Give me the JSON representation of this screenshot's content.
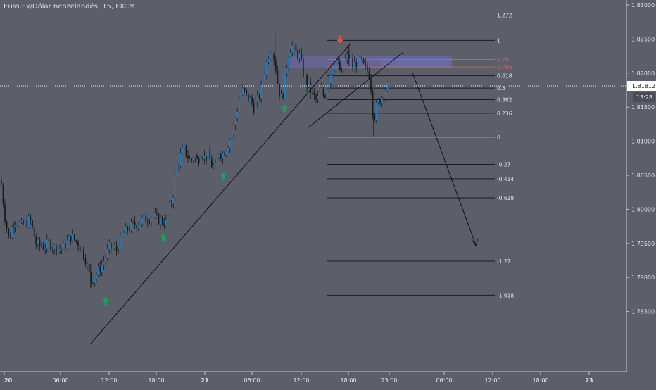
{
  "header": {
    "title": "Euro Fx/Dólar neozelandés, 15, FXCM"
  },
  "price_axis": {
    "ticks": [
      "1.83000",
      "1.82500",
      "1.82000",
      "1.81500",
      "1.81000",
      "1.80500",
      "1.80000",
      "1.79500",
      "1.79000",
      "1.78500"
    ],
    "current_price": "1.81812",
    "countdown": "13:28"
  },
  "time_axis": {
    "labels": [
      "20",
      "06:00",
      "12:00",
      "18:00",
      "21",
      "06:00",
      "12:00",
      "18:00",
      "23:00",
      "06:00",
      "12:00",
      "18:00",
      "23"
    ]
  },
  "colors": {
    "background": "#5c5e6a",
    "candle_up": "#1a7fc4",
    "candle_down": "#1a1a1a",
    "arrow_up": "#1e9e5a",
    "arrow_down": "#e05545",
    "zone": "#6f72c8",
    "level_zero": "#d8d49a",
    "level_red": "#cf5f5f"
  },
  "chart_data": {
    "type": "candlestick",
    "title": "Euro Fx/Dólar neozelandés, 15, FXCM",
    "xlabel": "",
    "ylabel": "",
    "ylim": [
      1.784,
      1.832
    ],
    "grid": false,
    "price_path": [
      [
        0,
        1.8044
      ],
      [
        6,
        1.799
      ],
      [
        12,
        1.7955
      ],
      [
        20,
        1.7985
      ],
      [
        30,
        1.7975
      ],
      [
        42,
        1.7985
      ],
      [
        50,
        1.795
      ],
      [
        60,
        1.7945
      ],
      [
        70,
        1.795
      ],
      [
        80,
        1.794
      ],
      [
        90,
        1.7945
      ],
      [
        100,
        1.796
      ],
      [
        110,
        1.795
      ],
      [
        120,
        1.793
      ],
      [
        128,
        1.7895
      ],
      [
        136,
        1.7905
      ],
      [
        145,
        1.792
      ],
      [
        155,
        1.7945
      ],
      [
        165,
        1.794
      ],
      [
        175,
        1.7965
      ],
      [
        185,
        1.7975
      ],
      [
        195,
        1.798
      ],
      [
        205,
        1.7985
      ],
      [
        215,
        1.799
      ],
      [
        225,
        1.7985
      ],
      [
        235,
        1.798
      ],
      [
        240,
        1.8
      ],
      [
        245,
        1.802
      ],
      [
        250,
        1.806
      ],
      [
        255,
        1.8075
      ],
      [
        260,
        1.809
      ],
      [
        265,
        1.808
      ],
      [
        270,
        1.807
      ],
      [
        275,
        1.808
      ],
      [
        280,
        1.807
      ],
      [
        285,
        1.8085
      ],
      [
        290,
        1.8075
      ],
      [
        295,
        1.808
      ],
      [
        300,
        1.8065
      ],
      [
        305,
        1.806
      ],
      [
        310,
        1.8085
      ],
      [
        315,
        1.808
      ],
      [
        320,
        1.809
      ],
      [
        325,
        1.81
      ],
      [
        330,
        1.8115
      ],
      [
        335,
        1.814
      ],
      [
        340,
        1.8165
      ],
      [
        345,
        1.8175
      ],
      [
        350,
        1.8165
      ],
      [
        355,
        1.816
      ],
      [
        360,
        1.815
      ],
      [
        365,
        1.816
      ],
      [
        370,
        1.8175
      ],
      [
        375,
        1.82
      ],
      [
        380,
        1.8225
      ],
      [
        385,
        1.824
      ],
      [
        390,
        1.8215
      ],
      [
        395,
        1.8175
      ],
      [
        400,
        1.816
      ],
      [
        405,
        1.82
      ],
      [
        410,
        1.8235
      ],
      [
        415,
        1.824
      ],
      [
        420,
        1.823
      ],
      [
        425,
        1.8225
      ],
      [
        430,
        1.82
      ],
      [
        435,
        1.8185
      ],
      [
        440,
        1.8175
      ],
      [
        445,
        1.8165
      ],
      [
        450,
        1.816
      ],
      [
        455,
        1.8175
      ],
      [
        460,
        1.8165
      ],
      [
        465,
        1.8185
      ],
      [
        470,
        1.8205
      ],
      [
        475,
        1.822
      ],
      [
        480,
        1.821
      ],
      [
        485,
        1.8195
      ],
      [
        490,
        1.822
      ],
      [
        495,
        1.8225
      ],
      [
        500,
        1.821
      ],
      [
        505,
        1.8215
      ],
      [
        510,
        1.822
      ],
      [
        515,
        1.821
      ],
      [
        520,
        1.8205
      ],
      [
        525,
        1.8195
      ],
      [
        530,
        1.813
      ],
      [
        534,
        1.815
      ],
      [
        538,
        1.816
      ],
      [
        542,
        1.8165
      ],
      [
        546,
        1.8175
      ],
      [
        550,
        1.8181
      ]
    ],
    "low_spikes": [
      [
        530,
        1.8107
      ],
      [
        128,
        1.7885
      ]
    ],
    "high_spikes": [
      [
        390,
        1.8258
      ],
      [
        495,
        1.824
      ]
    ],
    "fibonacci": [
      {
        "label": "1.272",
        "price": 1.8285
      },
      {
        "label": "1",
        "price": 1.8248
      },
      {
        "label": "0.79",
        "price": 1.822,
        "color": "red"
      },
      {
        "label": "0.786",
        "price": 1.8209,
        "color": "red"
      },
      {
        "label": "0.618",
        "price": 1.8196
      },
      {
        "label": "0.5",
        "price": 1.8178
      },
      {
        "label": "0.382",
        "price": 1.8161
      },
      {
        "label": "0.236",
        "price": 1.8141
      },
      {
        "label": "0",
        "price": 1.8106,
        "color": "zero"
      },
      {
        "label": "-0.27",
        "price": 1.8066
      },
      {
        "label": "-0.414",
        "price": 1.8045
      },
      {
        "label": "-0.618",
        "price": 1.8017
      },
      {
        "label": "-1.27",
        "price": 1.7924
      },
      {
        "label": "-1.618",
        "price": 1.7874
      }
    ],
    "signals": [
      {
        "type": "buy",
        "x": 150,
        "price": 1.7865
      },
      {
        "type": "buy",
        "x": 232,
        "price": 1.7958
      },
      {
        "type": "buy",
        "x": 318,
        "price": 1.8048
      },
      {
        "type": "buy",
        "x": 404,
        "price": 1.8148
      },
      {
        "type": "sell",
        "x": 483,
        "price": 1.825
      }
    ]
  }
}
